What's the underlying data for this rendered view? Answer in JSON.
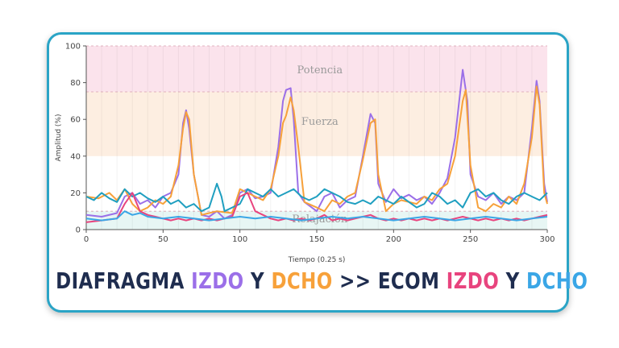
{
  "colors": {
    "frame": "#2aa4c6",
    "dark_text": "#1f2d4f",
    "purple": "#9b6fe8",
    "orange": "#f7a13a",
    "pink": "#e8447e",
    "blue": "#3aa6e6",
    "cyan_line": "#1f9fc0",
    "zone_potencia": "#fbe3ec",
    "zone_fuerza": "#fdeee1",
    "zone_relajacion": "#e7f6f4"
  },
  "caption": {
    "part1": "DIAFRAGMA ",
    "part2": "IZDO",
    "part3": " Y ",
    "part4": "DCHO",
    "part5": " >> ECOM ",
    "part6": "IZDO",
    "part7": " Y ",
    "part8": "DCHO"
  },
  "chart_data": {
    "type": "line",
    "xlabel": "Tiempo (0.25 s)",
    "ylabel": "Amplitud (%)",
    "xlim": [
      0,
      300
    ],
    "ylim": [
      0,
      100
    ],
    "xticks": [
      0,
      50,
      100,
      150,
      200,
      250,
      300
    ],
    "yticks": [
      0,
      20,
      40,
      60,
      80,
      100
    ],
    "zones": [
      {
        "label": "Potencia",
        "from": 75,
        "to": 100,
        "color": "#fbe3ec"
      },
      {
        "label": "Fuerza",
        "from": 40,
        "to": 75,
        "color": "#fdeee1"
      },
      {
        "label": "Relajación",
        "from": 0,
        "to": 10,
        "color": "#e7f6f4"
      }
    ],
    "series": [
      {
        "color": "#9b6fe8",
        "points": [
          [
            0,
            8
          ],
          [
            10,
            7
          ],
          [
            20,
            9
          ],
          [
            25,
            18
          ],
          [
            30,
            20
          ],
          [
            35,
            14
          ],
          [
            40,
            16
          ],
          [
            45,
            12
          ],
          [
            50,
            18
          ],
          [
            55,
            20
          ],
          [
            60,
            30
          ],
          [
            63,
            58
          ],
          [
            65,
            65
          ],
          [
            67,
            55
          ],
          [
            70,
            30
          ],
          [
            75,
            8
          ],
          [
            80,
            7
          ],
          [
            85,
            10
          ],
          [
            90,
            6
          ],
          [
            95,
            8
          ],
          [
            100,
            20
          ],
          [
            105,
            22
          ],
          [
            110,
            17
          ],
          [
            115,
            18
          ],
          [
            120,
            20
          ],
          [
            125,
            45
          ],
          [
            128,
            70
          ],
          [
            130,
            76
          ],
          [
            133,
            77
          ],
          [
            135,
            60
          ],
          [
            138,
            20
          ],
          [
            142,
            15
          ],
          [
            150,
            10
          ],
          [
            155,
            18
          ],
          [
            160,
            20
          ],
          [
            165,
            12
          ],
          [
            170,
            16
          ],
          [
            175,
            18
          ],
          [
            180,
            40
          ],
          [
            185,
            63
          ],
          [
            188,
            58
          ],
          [
            190,
            25
          ],
          [
            195,
            15
          ],
          [
            200,
            22
          ],
          [
            205,
            17
          ],
          [
            210,
            19
          ],
          [
            215,
            16
          ],
          [
            220,
            18
          ],
          [
            225,
            14
          ],
          [
            230,
            20
          ],
          [
            235,
            28
          ],
          [
            240,
            50
          ],
          [
            245,
            87
          ],
          [
            248,
            70
          ],
          [
            250,
            30
          ],
          [
            255,
            18
          ],
          [
            260,
            16
          ],
          [
            265,
            20
          ],
          [
            270,
            14
          ],
          [
            275,
            18
          ],
          [
            280,
            16
          ],
          [
            285,
            20
          ],
          [
            290,
            55
          ],
          [
            293,
            81
          ],
          [
            295,
            70
          ],
          [
            298,
            25
          ],
          [
            300,
            15
          ]
        ]
      },
      {
        "color": "#f7a13a",
        "points": [
          [
            0,
            18
          ],
          [
            8,
            17
          ],
          [
            15,
            20
          ],
          [
            20,
            16
          ],
          [
            25,
            22
          ],
          [
            30,
            14
          ],
          [
            35,
            10
          ],
          [
            40,
            12
          ],
          [
            45,
            16
          ],
          [
            50,
            14
          ],
          [
            55,
            18
          ],
          [
            60,
            35
          ],
          [
            63,
            55
          ],
          [
            65,
            64
          ],
          [
            67,
            60
          ],
          [
            70,
            30
          ],
          [
            75,
            8
          ],
          [
            85,
            10
          ],
          [
            95,
            9
          ],
          [
            100,
            22
          ],
          [
            105,
            20
          ],
          [
            110,
            18
          ],
          [
            115,
            16
          ],
          [
            120,
            22
          ],
          [
            125,
            40
          ],
          [
            128,
            58
          ],
          [
            130,
            62
          ],
          [
            133,
            72
          ],
          [
            135,
            65
          ],
          [
            138,
            45
          ],
          [
            142,
            15
          ],
          [
            150,
            12
          ],
          [
            155,
            10
          ],
          [
            160,
            16
          ],
          [
            165,
            14
          ],
          [
            170,
            18
          ],
          [
            175,
            20
          ],
          [
            180,
            38
          ],
          [
            185,
            58
          ],
          [
            188,
            60
          ],
          [
            190,
            30
          ],
          [
            195,
            10
          ],
          [
            200,
            14
          ],
          [
            205,
            16
          ],
          [
            210,
            15
          ],
          [
            215,
            14
          ],
          [
            220,
            18
          ],
          [
            225,
            16
          ],
          [
            230,
            22
          ],
          [
            235,
            25
          ],
          [
            240,
            40
          ],
          [
            245,
            70
          ],
          [
            247,
            76
          ],
          [
            250,
            35
          ],
          [
            255,
            12
          ],
          [
            260,
            10
          ],
          [
            265,
            14
          ],
          [
            270,
            12
          ],
          [
            275,
            18
          ],
          [
            280,
            14
          ],
          [
            285,
            25
          ],
          [
            290,
            50
          ],
          [
            293,
            78
          ],
          [
            295,
            68
          ],
          [
            298,
            20
          ],
          [
            300,
            14
          ]
        ]
      },
      {
        "color": "#1f9fc0",
        "points": [
          [
            0,
            18
          ],
          [
            5,
            16
          ],
          [
            10,
            20
          ],
          [
            15,
            17
          ],
          [
            20,
            15
          ],
          [
            25,
            22
          ],
          [
            30,
            18
          ],
          [
            35,
            20
          ],
          [
            40,
            17
          ],
          [
            45,
            15
          ],
          [
            50,
            18
          ],
          [
            55,
            14
          ],
          [
            60,
            16
          ],
          [
            65,
            12
          ],
          [
            70,
            14
          ],
          [
            75,
            10
          ],
          [
            80,
            12
          ],
          [
            85,
            25
          ],
          [
            88,
            18
          ],
          [
            90,
            10
          ],
          [
            95,
            12
          ],
          [
            100,
            14
          ],
          [
            105,
            22
          ],
          [
            110,
            20
          ],
          [
            115,
            18
          ],
          [
            120,
            22
          ],
          [
            125,
            18
          ],
          [
            130,
            20
          ],
          [
            135,
            22
          ],
          [
            140,
            18
          ],
          [
            145,
            16
          ],
          [
            150,
            18
          ],
          [
            155,
            22
          ],
          [
            160,
            20
          ],
          [
            165,
            18
          ],
          [
            170,
            15
          ],
          [
            175,
            14
          ],
          [
            180,
            16
          ],
          [
            185,
            14
          ],
          [
            190,
            18
          ],
          [
            195,
            16
          ],
          [
            200,
            14
          ],
          [
            205,
            18
          ],
          [
            210,
            15
          ],
          [
            215,
            12
          ],
          [
            220,
            14
          ],
          [
            225,
            20
          ],
          [
            230,
            18
          ],
          [
            235,
            14
          ],
          [
            240,
            16
          ],
          [
            245,
            12
          ],
          [
            250,
            20
          ],
          [
            255,
            22
          ],
          [
            260,
            18
          ],
          [
            265,
            20
          ],
          [
            270,
            16
          ],
          [
            275,
            14
          ],
          [
            280,
            18
          ],
          [
            285,
            20
          ],
          [
            290,
            18
          ],
          [
            295,
            16
          ],
          [
            300,
            20
          ]
        ]
      },
      {
        "color": "#e8447e",
        "points": [
          [
            0,
            4
          ],
          [
            10,
            5
          ],
          [
            20,
            6
          ],
          [
            25,
            14
          ],
          [
            30,
            20
          ],
          [
            35,
            10
          ],
          [
            40,
            8
          ],
          [
            45,
            7
          ],
          [
            50,
            6
          ],
          [
            55,
            5
          ],
          [
            60,
            6
          ],
          [
            65,
            5
          ],
          [
            70,
            6
          ],
          [
            75,
            5
          ],
          [
            80,
            6
          ],
          [
            85,
            5
          ],
          [
            90,
            6
          ],
          [
            95,
            7
          ],
          [
            100,
            18
          ],
          [
            105,
            20
          ],
          [
            110,
            10
          ],
          [
            115,
            8
          ],
          [
            120,
            6
          ],
          [
            125,
            5
          ],
          [
            130,
            6
          ],
          [
            135,
            5
          ],
          [
            140,
            6
          ],
          [
            145,
            5
          ],
          [
            150,
            6
          ],
          [
            155,
            8
          ],
          [
            160,
            5
          ],
          [
            165,
            6
          ],
          [
            170,
            5
          ],
          [
            175,
            6
          ],
          [
            180,
            7
          ],
          [
            185,
            8
          ],
          [
            190,
            6
          ],
          [
            195,
            5
          ],
          [
            200,
            6
          ],
          [
            205,
            5
          ],
          [
            210,
            6
          ],
          [
            215,
            5
          ],
          [
            220,
            6
          ],
          [
            225,
            5
          ],
          [
            230,
            6
          ],
          [
            235,
            5
          ],
          [
            240,
            6
          ],
          [
            245,
            7
          ],
          [
            250,
            6
          ],
          [
            255,
            5
          ],
          [
            260,
            6
          ],
          [
            265,
            5
          ],
          [
            270,
            6
          ],
          [
            275,
            5
          ],
          [
            280,
            6
          ],
          [
            285,
            5
          ],
          [
            290,
            6
          ],
          [
            295,
            7
          ],
          [
            300,
            8
          ]
        ]
      },
      {
        "color": "#3aa6e6",
        "points": [
          [
            0,
            6
          ],
          [
            10,
            5
          ],
          [
            20,
            6
          ],
          [
            25,
            10
          ],
          [
            30,
            8
          ],
          [
            35,
            9
          ],
          [
            40,
            7
          ],
          [
            50,
            6
          ],
          [
            60,
            7
          ],
          [
            70,
            6
          ],
          [
            80,
            5
          ],
          [
            90,
            6
          ],
          [
            100,
            7
          ],
          [
            110,
            6
          ],
          [
            120,
            7
          ],
          [
            130,
            6
          ],
          [
            140,
            5
          ],
          [
            150,
            6
          ],
          [
            160,
            7
          ],
          [
            170,
            6
          ],
          [
            180,
            7
          ],
          [
            190,
            6
          ],
          [
            200,
            5
          ],
          [
            210,
            6
          ],
          [
            220,
            7
          ],
          [
            230,
            6
          ],
          [
            240,
            5
          ],
          [
            250,
            6
          ],
          [
            260,
            7
          ],
          [
            270,
            6
          ],
          [
            280,
            5
          ],
          [
            290,
            6
          ],
          [
            300,
            7
          ]
        ]
      }
    ]
  }
}
